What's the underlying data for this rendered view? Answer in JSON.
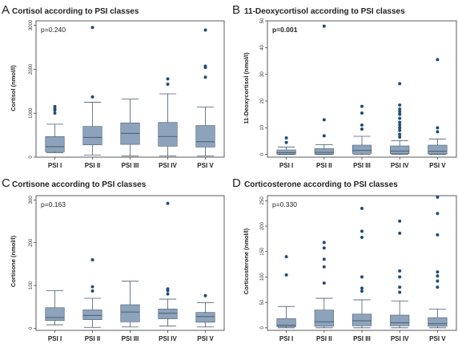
{
  "chart_data": [
    {
      "id": "A",
      "type": "box",
      "letter": "A",
      "title": "Cortisol according to PSI classes",
      "ylabel": "Cortisol (nmol/l)",
      "ylim": [
        0,
        3100
      ],
      "yticks": [
        0,
        1000,
        2000,
        3000
      ],
      "p_label": "p=0.240",
      "p_bold": false,
      "categories": [
        "PSI I",
        "PSI II",
        "PSI III",
        "PSI IV",
        "PSI V"
      ],
      "boxes": [
        {
          "whislo": 100,
          "q1": 120,
          "med": 240,
          "q3": 470,
          "whishi": 750,
          "fliers": [
            1000,
            1070,
            1100,
            1150
          ]
        },
        {
          "whislo": 50,
          "q1": 280,
          "med": 450,
          "q3": 700,
          "whishi": 1250,
          "fliers": [
            1370,
            2950
          ]
        },
        {
          "whislo": 30,
          "q1": 290,
          "med": 540,
          "q3": 780,
          "whishi": 1320,
          "fliers": []
        },
        {
          "whislo": 30,
          "q1": 250,
          "med": 470,
          "q3": 790,
          "whishi": 1440,
          "fliers": [
            1660,
            1780
          ]
        },
        {
          "whislo": 30,
          "q1": 230,
          "med": 350,
          "q3": 720,
          "whishi": 1140,
          "fliers": [
            1820,
            2040,
            2070,
            2890
          ]
        }
      ]
    },
    {
      "id": "B",
      "type": "box",
      "letter": "B",
      "title": "11-Deoxycortisol according to PSI classes",
      "ylabel": "11-Deoxycortisol (nmol/l)",
      "ylim": [
        -1,
        50
      ],
      "yticks": [
        0,
        10,
        20,
        30,
        40,
        50
      ],
      "p_label": "p=0.001",
      "p_bold": true,
      "categories": [
        "PSI I",
        "PSI II",
        "PSI III",
        "PSI IV",
        "PSI V"
      ],
      "boxes": [
        {
          "whislo": 0,
          "q1": 0.1,
          "med": 0.7,
          "q3": 1.7,
          "whishi": 2.8,
          "fliers": [
            4.5,
            6.2
          ]
        },
        {
          "whislo": 0,
          "q1": 0.1,
          "med": 0.8,
          "q3": 2.2,
          "whishi": 3.7,
          "fliers": [
            7,
            13,
            48
          ]
        },
        {
          "whislo": 0,
          "q1": 0.4,
          "med": 1.5,
          "q3": 3.5,
          "whishi": 6.8,
          "fliers": [
            9.5,
            11,
            15.5,
            18
          ]
        },
        {
          "whislo": 0,
          "q1": 0.3,
          "med": 1.3,
          "q3": 3.2,
          "whishi": 5.2,
          "fliers": [
            6.5,
            7.5,
            9,
            10,
            11,
            12,
            13.5,
            15,
            16,
            17,
            18.5,
            26.5
          ]
        },
        {
          "whislo": 0,
          "q1": 0.2,
          "med": 1.2,
          "q3": 3.5,
          "whishi": 5.8,
          "fliers": [
            8.5,
            10,
            35.5
          ]
        }
      ]
    },
    {
      "id": "C",
      "type": "box",
      "letter": "C",
      "title": "Cortisone according to PSI classes",
      "ylabel": "Cortisone (nmol/l)",
      "ylim": [
        -5,
        310
      ],
      "yticks": [
        0,
        100,
        200,
        300
      ],
      "p_label": "p=0.163",
      "p_bold": false,
      "categories": [
        "PSI I",
        "PSI II",
        "PSI III",
        "PSI IV",
        "PSI V"
      ],
      "boxes": [
        {
          "whislo": 8,
          "q1": 18,
          "med": 25,
          "q3": 48,
          "whishi": 88,
          "fliers": []
        },
        {
          "whislo": 2,
          "q1": 20,
          "med": 30,
          "q3": 43,
          "whishi": 70,
          "fliers": [
            87,
            97,
            160
          ]
        },
        {
          "whislo": 3,
          "q1": 15,
          "med": 38,
          "q3": 55,
          "whishi": 110,
          "fliers": []
        },
        {
          "whislo": 5,
          "q1": 22,
          "med": 35,
          "q3": 45,
          "whishi": 68,
          "fliers": [
            80,
            88,
            92,
            292
          ]
        },
        {
          "whislo": 3,
          "q1": 14,
          "med": 27,
          "q3": 37,
          "whishi": 60,
          "fliers": [
            76
          ]
        }
      ]
    },
    {
      "id": "D",
      "type": "box",
      "letter": "D",
      "title": "Corticosterone according to PSI classes",
      "ylabel": "Corticosterone (nmol/l)",
      "ylim": [
        -5,
        260
      ],
      "yticks": [
        0,
        50,
        100,
        150,
        200,
        250
      ],
      "p_label": "p=0.330",
      "p_bold": false,
      "categories": [
        "PSI I",
        "PSI II",
        "PSI III",
        "PSI IV",
        "PSI V"
      ],
      "boxes": [
        {
          "whislo": 0,
          "q1": 2,
          "med": 5,
          "q3": 18,
          "whishi": 42,
          "fliers": [
            104,
            140
          ]
        },
        {
          "whislo": 0,
          "q1": 3,
          "med": 12,
          "q3": 35,
          "whishi": 58,
          "fliers": [
            88,
            120,
            135,
            157,
            168
          ]
        },
        {
          "whislo": 0,
          "q1": 4,
          "med": 14,
          "q3": 27,
          "whishi": 55,
          "fliers": [
            72,
            78,
            100,
            178,
            190,
            235
          ]
        },
        {
          "whislo": 0,
          "q1": 4,
          "med": 10,
          "q3": 25,
          "whishi": 53,
          "fliers": [
            70,
            80,
            100,
            112,
            186,
            210
          ]
        },
        {
          "whislo": 0,
          "q1": 3,
          "med": 8,
          "q3": 20,
          "whishi": 37,
          "fliers": [
            80,
            92,
            102,
            110,
            183,
            225,
            257
          ]
        }
      ]
    }
  ],
  "colors": {
    "box_fill": "#8da3bc",
    "box_stroke": "#4a5c70",
    "outlier": "#1f4e79",
    "axis": "#333333"
  }
}
